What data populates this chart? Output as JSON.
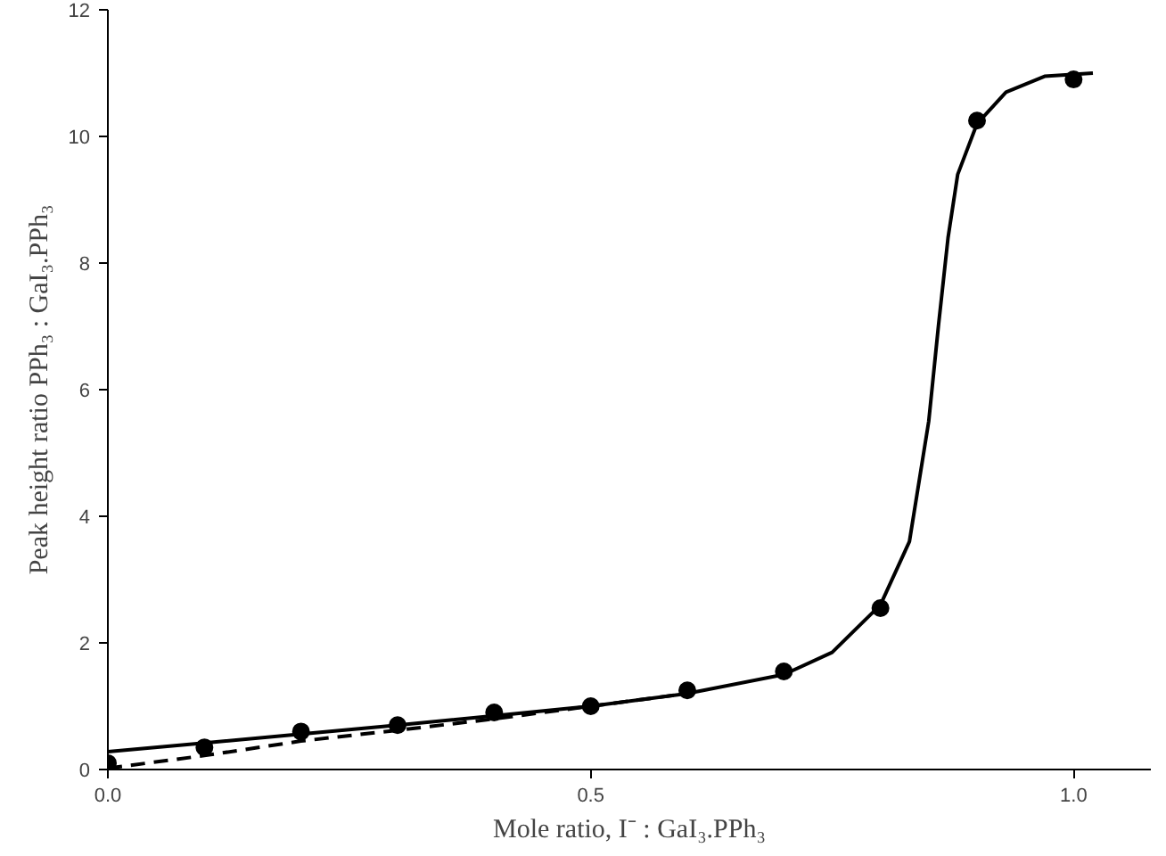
{
  "chart_data": {
    "type": "scatter",
    "xlabel": "Mole ratio, I⁻ : GaI₃.PPh₃",
    "ylabel": "Peak height ratio PPh₃ : GaI₃.PPh₃",
    "xlim": [
      0,
      1.08
    ],
    "ylim": [
      0,
      12
    ],
    "xticks": [
      {
        "value": 0,
        "label": "0.0"
      },
      {
        "value": 0.5,
        "label": "0.5"
      },
      {
        "value": 1,
        "label": "1.0"
      }
    ],
    "yticks": [
      0,
      2,
      4,
      6,
      8,
      10,
      12
    ],
    "grid": false,
    "series": [
      {
        "type": "line",
        "line_style": "solid",
        "marker": "none",
        "color": "#000000",
        "x": [
          0,
          0.1,
          0.2,
          0.3,
          0.4,
          0.5,
          0.6,
          0.7,
          0.75,
          0.8,
          0.83,
          0.85,
          0.86,
          0.87,
          0.88,
          0.9,
          0.93,
          0.97,
          1.02
        ],
        "values": [
          0.28,
          0.42,
          0.56,
          0.7,
          0.85,
          1.0,
          1.2,
          1.5,
          1.85,
          2.6,
          3.6,
          5.5,
          7,
          8.4,
          9.4,
          10.2,
          10.7,
          10.95,
          11.0
        ]
      },
      {
        "type": "line",
        "line_style": "dashed",
        "marker": "none",
        "color": "#000000",
        "x": [
          0,
          0.1,
          0.2,
          0.3,
          0.4,
          0.5,
          0.6
        ],
        "values": [
          0.02,
          0.22,
          0.45,
          0.62,
          0.8,
          1.0,
          1.2
        ]
      },
      {
        "marker": "circle",
        "color": "#000000",
        "x": [
          0,
          0.1,
          0.2,
          0.3,
          0.4,
          0.5,
          0.6,
          0.7,
          0.8,
          0.9,
          1.0
        ],
        "values": [
          0.1,
          0.35,
          0.6,
          0.7,
          0.9,
          1.0,
          1.25,
          1.55,
          2.55,
          10.25,
          10.9
        ]
      }
    ]
  }
}
